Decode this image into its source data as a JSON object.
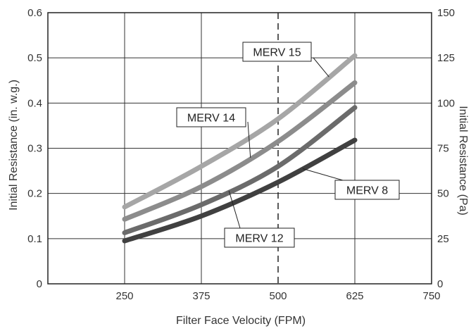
{
  "chart_data": {
    "type": "line",
    "xlabel": "Filter Face Velocity (FPM)",
    "ylabel": "Initial Resistance (in. w.g.)",
    "y2label": "Initial Resistance (Pa)",
    "xlim": [
      125,
      750
    ],
    "xticks": [
      250,
      375,
      500,
      625,
      750
    ],
    "ylim": [
      0,
      0.6
    ],
    "yticks": [
      0,
      0.1,
      0.2,
      0.3,
      0.4,
      0.5,
      0.6
    ],
    "ytick_labels": [
      "0",
      "0.1",
      "0.2",
      "0.3",
      "0.4",
      "0.5",
      "0.6"
    ],
    "y2lim": [
      0,
      150
    ],
    "y2ticks": [
      0,
      25,
      50,
      75,
      100,
      125,
      150
    ],
    "grid": true,
    "reference_line": {
      "x": 500,
      "style": "dashed"
    },
    "series": [
      {
        "name": "MERV 15",
        "color": "#a6a6a6",
        "x": [
          250,
          375,
          500,
          625
        ],
        "y": [
          0.17,
          0.26,
          0.365,
          0.505
        ]
      },
      {
        "name": "MERV 14",
        "color": "#8c8c8c",
        "x": [
          250,
          375,
          500,
          625
        ],
        "y": [
          0.143,
          0.215,
          0.315,
          0.445
        ]
      },
      {
        "name": "MERV 12",
        "color": "#6b6b6b",
        "x": [
          250,
          375,
          500,
          625
        ],
        "y": [
          0.113,
          0.175,
          0.26,
          0.39
        ]
      },
      {
        "name": "MERV 8",
        "color": "#404040",
        "x": [
          250,
          375,
          500,
          625
        ],
        "y": [
          0.095,
          0.15,
          0.225,
          0.318
        ]
      }
    ]
  }
}
